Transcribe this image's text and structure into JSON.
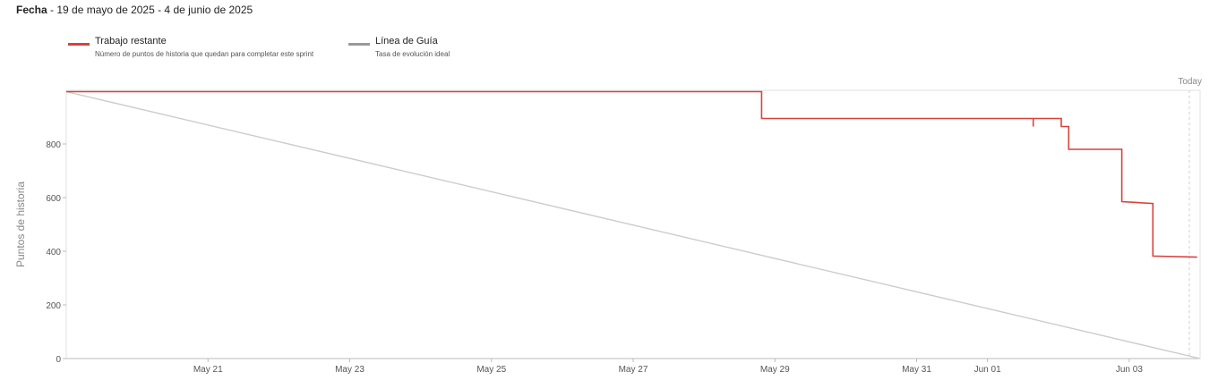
{
  "header": {
    "label": "Fecha",
    "range": " - 19 de mayo de 2025 - 4 de junio de 2025"
  },
  "legend": [
    {
      "title": "Trabajo restante",
      "description": "Número de puntos de historia que quedan para completar este sprint",
      "color": "#d9413d"
    },
    {
      "title": "Línea de Guía",
      "description": "Tasa de evolución ideal",
      "color": "#999999"
    }
  ],
  "chart_data": {
    "type": "line",
    "ylabel": "Puntos de historia",
    "ylim": [
      0,
      1000
    ],
    "yticks": [
      0,
      200,
      400,
      600,
      800
    ],
    "xlim": [
      "2025-05-19",
      "2025-06-04"
    ],
    "xticks": [
      {
        "date": "2025-05-21",
        "label": "May 21"
      },
      {
        "date": "2025-05-23",
        "label": "May 23"
      },
      {
        "date": "2025-05-25",
        "label": "May 25"
      },
      {
        "date": "2025-05-27",
        "label": "May 27"
      },
      {
        "date": "2025-05-29",
        "label": "May 29"
      },
      {
        "date": "2025-05-31",
        "label": "May 31"
      },
      {
        "date": "2025-06-01",
        "label": "Jun 01"
      },
      {
        "date": "2025-06-03",
        "label": "Jun 03"
      }
    ],
    "today": {
      "date": "2025-06-04",
      "label": "Today"
    },
    "series": [
      {
        "name": "Trabajo restante",
        "color": "#d9413d",
        "step": true,
        "points": [
          {
            "x": "2025-05-19T00:00",
            "y": 995
          },
          {
            "x": "2025-05-28T19:30",
            "y": 995
          },
          {
            "x": "2025-05-28T19:30",
            "y": 895
          },
          {
            "x": "2025-06-01T15:30",
            "y": 895
          },
          {
            "x": "2025-06-01T15:30",
            "y": 865
          },
          {
            "x": "2025-06-01T15:30",
            "y": 895
          },
          {
            "x": "2025-06-02T01:00",
            "y": 895
          },
          {
            "x": "2025-06-02T01:00",
            "y": 865
          },
          {
            "x": "2025-06-02T03:30",
            "y": 865
          },
          {
            "x": "2025-06-02T03:30",
            "y": 780
          },
          {
            "x": "2025-06-02T21:30",
            "y": 780
          },
          {
            "x": "2025-06-02T21:30",
            "y": 585
          },
          {
            "x": "2025-06-03T08:00",
            "y": 578
          },
          {
            "x": "2025-06-03T08:00",
            "y": 382
          },
          {
            "x": "2025-06-03T23:00",
            "y": 378
          }
        ]
      },
      {
        "name": "Línea de Guía",
        "color": "#cccccc",
        "points": [
          {
            "x": "2025-05-19T00:00",
            "y": 995
          },
          {
            "x": "2025-06-04T00:00",
            "y": 0
          }
        ]
      }
    ]
  }
}
